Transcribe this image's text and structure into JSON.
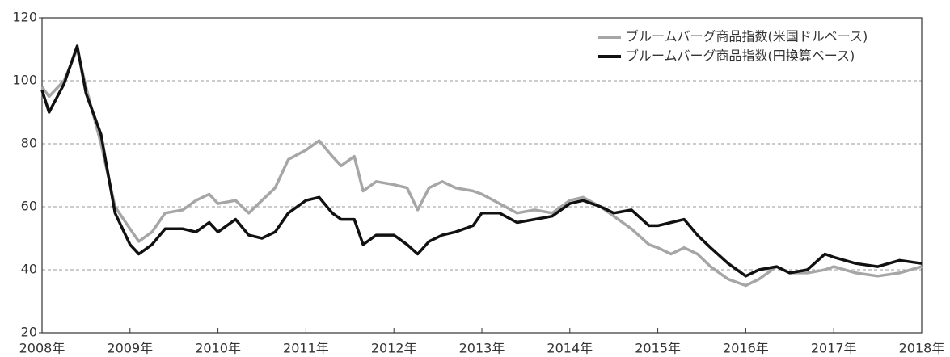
{
  "chart_data": {
    "type": "line",
    "x": [
      2008,
      2008.08,
      2008.25,
      2008.4,
      2008.5,
      2008.67,
      2008.83,
      2009,
      2009.1,
      2009.25,
      2009.4,
      2009.6,
      2009.75,
      2009.9,
      2010,
      2010.2,
      2010.35,
      2010.5,
      2010.65,
      2010.8,
      2011,
      2011.15,
      2011.3,
      2011.4,
      2011.55,
      2011.65,
      2011.8,
      2012,
      2012.15,
      2012.27,
      2012.4,
      2012.55,
      2012.7,
      2012.9,
      2013,
      2013.2,
      2013.4,
      2013.6,
      2013.8,
      2014,
      2014.15,
      2014.35,
      2014.5,
      2014.7,
      2014.9,
      2015,
      2015.15,
      2015.3,
      2015.45,
      2015.6,
      2015.8,
      2016,
      2016.15,
      2016.35,
      2016.5,
      2016.7,
      2016.9,
      2017,
      2017.25,
      2017.5,
      2017.75,
      2018
    ],
    "series": [
      {
        "name": "ブルームバーグ商品指数(米国ドルベース)",
        "color": "#a6a6a6",
        "values": [
          98,
          95,
          100,
          110,
          98,
          80,
          60,
          53,
          49,
          52,
          58,
          59,
          62,
          64,
          61,
          62,
          58,
          62,
          66,
          75,
          78,
          81,
          76,
          73,
          76,
          65,
          68,
          67,
          66,
          59,
          66,
          68,
          66,
          65,
          64,
          61,
          58,
          59,
          58,
          62,
          63,
          60,
          57,
          53,
          48,
          47,
          45,
          47,
          45,
          41,
          37,
          35,
          37,
          41,
          39,
          39,
          40,
          41,
          39,
          38,
          39,
          41
        ]
      },
      {
        "name": "ブルームバーグ商品指数(円換算ベース)",
        "color": "#111111",
        "values": [
          97,
          90,
          99,
          111,
          96,
          83,
          58,
          48,
          45,
          48,
          53,
          53,
          52,
          55,
          52,
          56,
          51,
          50,
          52,
          58,
          62,
          63,
          58,
          56,
          56,
          48,
          51,
          51,
          48,
          45,
          49,
          51,
          52,
          54,
          58,
          58,
          55,
          56,
          57,
          61,
          62,
          60,
          58,
          59,
          54,
          54,
          55,
          56,
          51,
          47,
          42,
          38,
          40,
          41,
          39,
          40,
          45,
          44,
          42,
          41,
          43,
          42
        ]
      }
    ],
    "xlim": [
      2008,
      2018
    ],
    "xticks": [
      {
        "value": 2008,
        "label": "2008年"
      },
      {
        "value": 2009,
        "label": "2009年"
      },
      {
        "value": 2010,
        "label": "2010年"
      },
      {
        "value": 2011,
        "label": "2011年"
      },
      {
        "value": 2012,
        "label": "2012年"
      },
      {
        "value": 2013,
        "label": "2013年"
      },
      {
        "value": 2014,
        "label": "2014年"
      },
      {
        "value": 2015,
        "label": "2015年"
      },
      {
        "value": 2016,
        "label": "2016年"
      },
      {
        "value": 2017,
        "label": "2017年"
      },
      {
        "value": 2018,
        "label": "2018年"
      }
    ],
    "ylim": [
      20,
      120
    ],
    "yticks": [
      20,
      40,
      60,
      80,
      100,
      120
    ],
    "grid": true,
    "legend": "top-right"
  }
}
